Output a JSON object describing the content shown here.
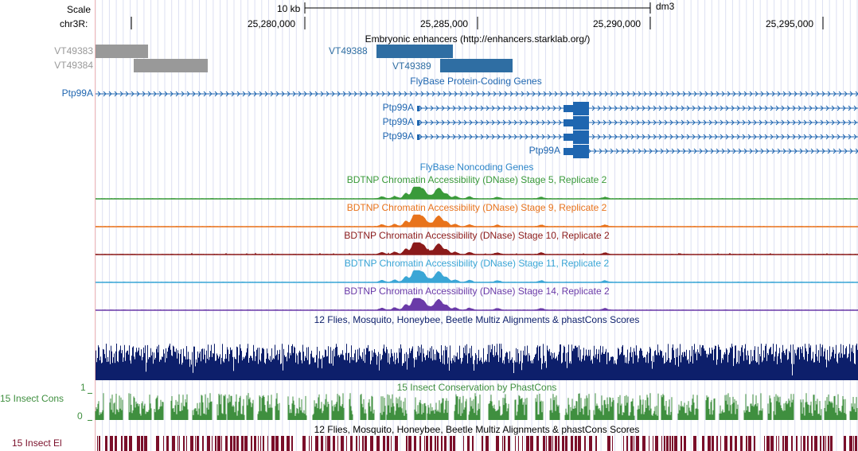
{
  "ruler": {
    "scale_label": "Scale",
    "chrom_label": "chr3R:",
    "scale_bar_text": "10 kb",
    "assembly": "dm3",
    "positions": [
      "25,280,000",
      "25,285,000",
      "25,290,000",
      "25,295,000"
    ]
  },
  "tracks": {
    "enhancers": {
      "title": "Embryonic enhancers (http://enhancers.starklab.org/)",
      "items": [
        {
          "name": "VT49383",
          "color": "#999999"
        },
        {
          "name": "VT49384",
          "color": "#999999"
        },
        {
          "name": "VT49388",
          "color": "#2f6ea3"
        },
        {
          "name": "VT49389",
          "color": "#2f6ea3"
        }
      ]
    },
    "flybase_coding": {
      "title": "FlyBase Protein-Coding Genes",
      "color": "#1f66b0",
      "side_label": "Ptp99A",
      "transcripts": [
        "Ptp99A",
        "Ptp99A",
        "Ptp99A",
        "Ptp99A"
      ]
    },
    "flybase_noncoding": {
      "title": "FlyBase Noncoding Genes",
      "color": "#2d86c9"
    },
    "dnase": [
      {
        "title": "BDTNP Chromatin Accessibility (DNase) Stage 5, Replicate 2",
        "color": "#3a9a3a"
      },
      {
        "title": "BDTNP Chromatin Accessibility (DNase) Stage 9, Replicate 2",
        "color": "#e8731c"
      },
      {
        "title": "BDTNP Chromatin Accessibility (DNase) Stage 10, Replicate 2",
        "color": "#8b1a1a"
      },
      {
        "title": "BDTNP Chromatin Accessibility (DNase) Stage 11, Replicate 2",
        "color": "#3aa6d6"
      },
      {
        "title": "BDTNP Chromatin Accessibility (DNase) Stage 14, Replicate 2",
        "color": "#6a3aa8"
      }
    ],
    "multiz": {
      "title": "12 Flies, Mosquito, Honeybee, Beetle Multiz Alignments & phastCons Scores",
      "color": "#0d1f6b"
    },
    "insect_cons": {
      "title": "15 Insect Conservation by PhastCons",
      "side_label": "15 Insect Cons",
      "y_max": "1",
      "y_min": "0",
      "color": "#3f8f3f"
    },
    "insect_el": {
      "title": "12 Flies, Mosquito, Honeybee, Beetle Multiz Alignments & phastCons Scores",
      "side_label": "15 Insect El",
      "color": "#7a0f2a"
    }
  }
}
